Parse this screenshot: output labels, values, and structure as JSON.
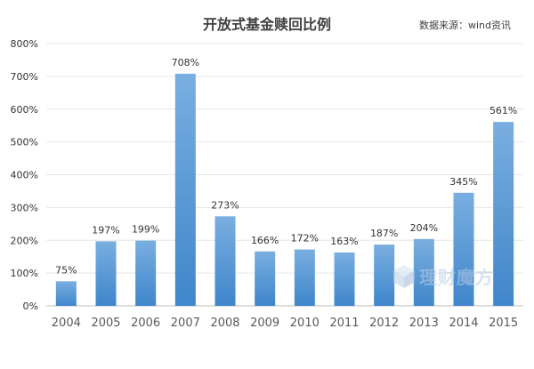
{
  "chart_data": {
    "type": "bar",
    "title": "开放式基金赎回比例",
    "source": "数据来源：wind资讯",
    "categories": [
      "2004",
      "2005",
      "2006",
      "2007",
      "2008",
      "2009",
      "2010",
      "2011",
      "2012",
      "2013",
      "2014",
      "2015"
    ],
    "values": [
      75,
      197,
      199,
      708,
      273,
      166,
      172,
      163,
      187,
      204,
      345,
      561
    ],
    "data_labels": [
      "75%",
      "197%",
      "199%",
      "708%",
      "273%",
      "166%",
      "172%",
      "163%",
      "187%",
      "204%",
      "345%",
      "561%"
    ],
    "y_ticks": [
      "0%",
      "100%",
      "200%",
      "300%",
      "400%",
      "500%",
      "600%",
      "700%",
      "800%"
    ],
    "ylim": [
      0,
      800
    ],
    "grid": true,
    "legend": "none",
    "bar_color_top": "#7aaee0",
    "bar_color_bottom": "#3f86cb"
  },
  "watermark": {
    "text": "理财魔方",
    "icon": "cube-logo-icon",
    "color": "#b7cde4"
  }
}
